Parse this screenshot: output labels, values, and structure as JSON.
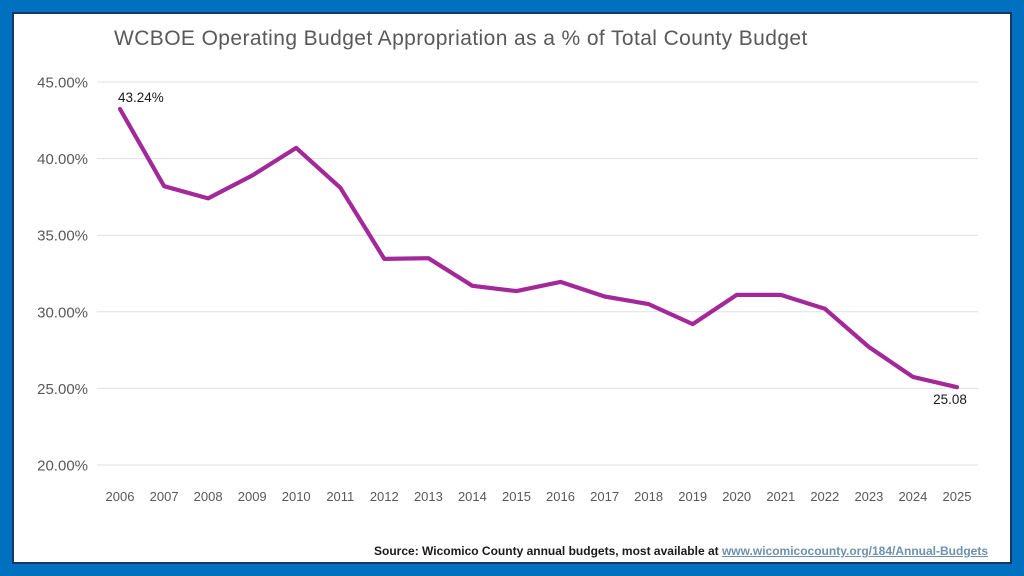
{
  "title": "WCBOE Operating Budget Appropriation as a % of Total County Budget",
  "chart_data": {
    "type": "line",
    "title": "WCBOE Operating Budget Appropriation as a % of Total County Budget",
    "categories": [
      "2006",
      "2007",
      "2008",
      "2009",
      "2010",
      "2011",
      "2012",
      "2013",
      "2014",
      "2015",
      "2016",
      "2017",
      "2018",
      "2019",
      "2020",
      "2021",
      "2022",
      "2023",
      "2024",
      "2025"
    ],
    "series": [
      {
        "name": "WCBOE Operating Budget Appropriation as % of Total County Budget",
        "values": [
          43.24,
          38.2,
          37.4,
          38.9,
          40.7,
          38.1,
          33.45,
          33.5,
          31.7,
          31.35,
          31.95,
          31.0,
          30.5,
          29.2,
          31.1,
          31.1,
          30.2,
          27.7,
          25.75,
          25.08
        ]
      }
    ],
    "xlabel": "",
    "ylabel": "",
    "ylim": [
      20,
      45
    ],
    "yticks": [
      {
        "value": 45,
        "label": "45.00%"
      },
      {
        "value": 40,
        "label": "40.00%"
      },
      {
        "value": 35,
        "label": "35.00%"
      },
      {
        "value": 30,
        "label": "30.00%"
      },
      {
        "value": 25,
        "label": "25.00%"
      },
      {
        "value": 20,
        "label": "20.00%"
      }
    ],
    "grid": "horizontal",
    "legend": "none",
    "line_color": "#A3299B",
    "grid_color": "#E0E0E0",
    "point_labels": [
      {
        "index": 0,
        "text": "43.24%",
        "position": "above"
      },
      {
        "index": 19,
        "text": "25.08",
        "position": "below"
      }
    ]
  },
  "footer": {
    "source_prefix": "Source: Wicomico County annual budgets, most available at ",
    "source_link": "www.wicomicocounty.org/184/Annual-Budgets"
  },
  "colors": {
    "frame_blue": "#0070C0",
    "inner_border_navy": "#17375E",
    "title_gray": "#595959",
    "line_purple": "#A3299B",
    "link_blue": "#6E91AE"
  }
}
